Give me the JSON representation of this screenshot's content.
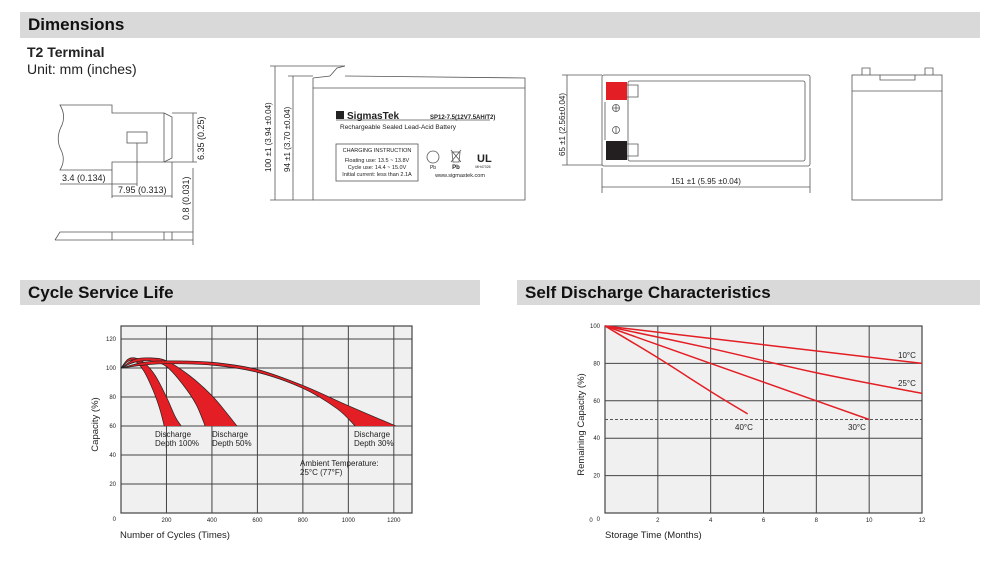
{
  "sections": {
    "dimensions": "Dimensions",
    "cycle_life": "Cycle Service Life",
    "self_discharge": "Self Discharge Characteristics"
  },
  "terminal": {
    "title": "T2 Terminal",
    "unit": "Unit: mm (inches)",
    "dim_height": "6.35 (0.25)",
    "dim_offset": "3.4 (0.134)",
    "dim_length": "7.95 (0.313)",
    "dim_thickness": "0.8 (0.031)"
  },
  "battery": {
    "brand": "SigmasTek",
    "model": "SP12-7.5(12V7.5AH/T2)",
    "subtitle": "Rechargeable Sealed Lead-Acid Battery",
    "charging_title": "CHARGING INSTRUCTION",
    "charging_lines": [
      "Floating use: 13.5 ~ 13.8V",
      "Cycle use: 14.4 ~ 15.0V",
      "Initial current: less than 2.1A"
    ],
    "website": "www.sigmastek.com",
    "icon_labels": [
      "Pb",
      "Pb",
      "MH47026"
    ],
    "dim_total_height": "100 ±1 (3.94 ±0.04)",
    "dim_container_height": "94 ±1 (3.70 ±0.04)",
    "dim_width": "65 ±1 (2.56±0.04)",
    "dim_length": "151 ±1 (5.95 ±0.04)",
    "terminal_colors": {
      "positive": "#e31e24",
      "negative": "#231f20"
    }
  },
  "chart_data": [
    {
      "type": "area",
      "title": "Cycle Service Life",
      "xlabel": "Number of Cycles (Times)",
      "ylabel": "Capacity (%)",
      "xlim": [
        0,
        1280
      ],
      "ylim": [
        0,
        129
      ],
      "xticks": [
        200,
        400,
        600,
        800,
        1000,
        1200
      ],
      "yticks": [
        0,
        20,
        40,
        60,
        80,
        100,
        120
      ],
      "grid": true,
      "color": "#e31e24",
      "series": [
        {
          "name": "Discharge Depth 100%",
          "label": [
            "Discharge",
            "Depth 100%"
          ],
          "outer": [
            [
              0,
              100
            ],
            [
              30,
              106
            ],
            [
              60,
              107
            ],
            [
              100,
              104
            ],
            [
              150,
              95
            ],
            [
              200,
              80
            ],
            [
              240,
              66
            ],
            [
              265,
              60
            ]
          ],
          "inner": [
            [
              0,
              100
            ],
            [
              30,
              104.5
            ],
            [
              60,
              105
            ],
            [
              100,
              98
            ],
            [
              140,
              85
            ],
            [
              170,
              72
            ],
            [
              190,
              60
            ]
          ]
        },
        {
          "name": "Discharge Depth 50%",
          "label": [
            "Discharge",
            "Depth 50%"
          ],
          "outer": [
            [
              0,
              100
            ],
            [
              60,
              106
            ],
            [
              130,
              107
            ],
            [
              200,
              105
            ],
            [
              300,
              95
            ],
            [
              400,
              81
            ],
            [
              470,
              68
            ],
            [
              510,
              60
            ]
          ],
          "inner": [
            [
              0,
              100
            ],
            [
              60,
              104
            ],
            [
              130,
              105
            ],
            [
              200,
              101
            ],
            [
              270,
              89
            ],
            [
              330,
              75
            ],
            [
              370,
              60
            ]
          ]
        },
        {
          "name": "Discharge Depth 30%",
          "label": [
            "Discharge",
            "Depth 30%"
          ],
          "outer": [
            [
              0,
              100
            ],
            [
              100,
              104
            ],
            [
              200,
              105
            ],
            [
              400,
              104
            ],
            [
              600,
              99
            ],
            [
              800,
              88
            ],
            [
              1000,
              74
            ],
            [
              1210,
              60
            ]
          ],
          "inner": [
            [
              0,
              100
            ],
            [
              100,
              102
            ],
            [
              200,
              103
            ],
            [
              400,
              102
            ],
            [
              600,
              97
            ],
            [
              800,
              86
            ],
            [
              950,
              72
            ],
            [
              1030,
              60
            ]
          ]
        }
      ],
      "annotation": [
        "Ambient Temperature:",
        "25°C (77°F)"
      ]
    },
    {
      "type": "line",
      "title": "Self Discharge Characteristics",
      "xlabel": "Storage Time (Months)",
      "ylabel": "Remaining Capacity (%)",
      "xlim": [
        0,
        12
      ],
      "ylim": [
        0,
        100
      ],
      "xticks": [
        0,
        2,
        4,
        6,
        8,
        10,
        12
      ],
      "yticks": [
        0,
        20,
        40,
        60,
        80,
        100
      ],
      "grid": true,
      "reference_line": 50,
      "color": "#e31e24",
      "series": [
        {
          "name": "10°C",
          "points": [
            [
              0,
              100
            ],
            [
              6,
              90
            ],
            [
              12,
              80
            ]
          ]
        },
        {
          "name": "25°C",
          "points": [
            [
              0,
              100
            ],
            [
              4,
              88
            ],
            [
              8,
              75
            ],
            [
              12,
              64
            ]
          ]
        },
        {
          "name": "30°C",
          "points": [
            [
              0,
              100
            ],
            [
              4,
              80
            ],
            [
              8,
              60
            ],
            [
              10,
              50
            ]
          ]
        },
        {
          "name": "40°C",
          "points": [
            [
              0,
              100
            ],
            [
              2,
              83
            ],
            [
              4,
              65
            ],
            [
              5.4,
              53
            ]
          ]
        }
      ]
    }
  ]
}
